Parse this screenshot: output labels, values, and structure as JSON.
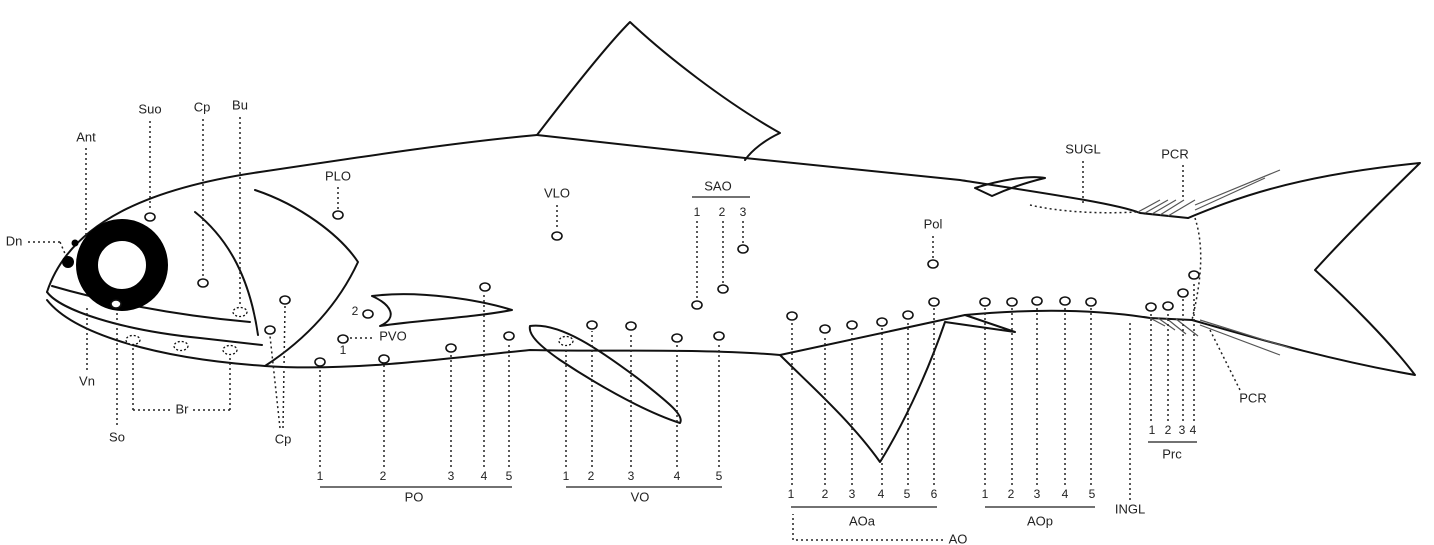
{
  "labels": {
    "ant": "Ant",
    "suo": "Suo",
    "cpUpper": "Cp",
    "bu": "Bu",
    "dn": "Dn",
    "plo": "PLO",
    "vlo": "VLO",
    "pol": "Pol",
    "sugl": "SUGL",
    "pcrUpper": "PCR",
    "pvo": "PVO",
    "vn": "Vn",
    "so": "So",
    "br": "Br",
    "cpLower": "Cp",
    "ingl": "INGL",
    "pcrLower": "PCR",
    "ao": "AO"
  },
  "pvoNumbers": [
    "2",
    "1"
  ],
  "groups": {
    "sao": {
      "name": "SAO",
      "numbers": [
        "1",
        "2",
        "3"
      ]
    },
    "po": {
      "name": "PO",
      "numbers": [
        "1",
        "2",
        "3",
        "4",
        "5"
      ]
    },
    "vo": {
      "name": "VO",
      "numbers": [
        "1",
        "2",
        "3",
        "4",
        "5"
      ]
    },
    "aoa": {
      "name": "AOa",
      "numbers": [
        "1",
        "2",
        "3",
        "4",
        "5",
        "6"
      ]
    },
    "aop": {
      "name": "AOp",
      "numbers": [
        "1",
        "2",
        "3",
        "4",
        "5"
      ]
    },
    "prc": {
      "name": "Prc",
      "numbers": [
        "1",
        "2",
        "3",
        "4"
      ]
    }
  }
}
